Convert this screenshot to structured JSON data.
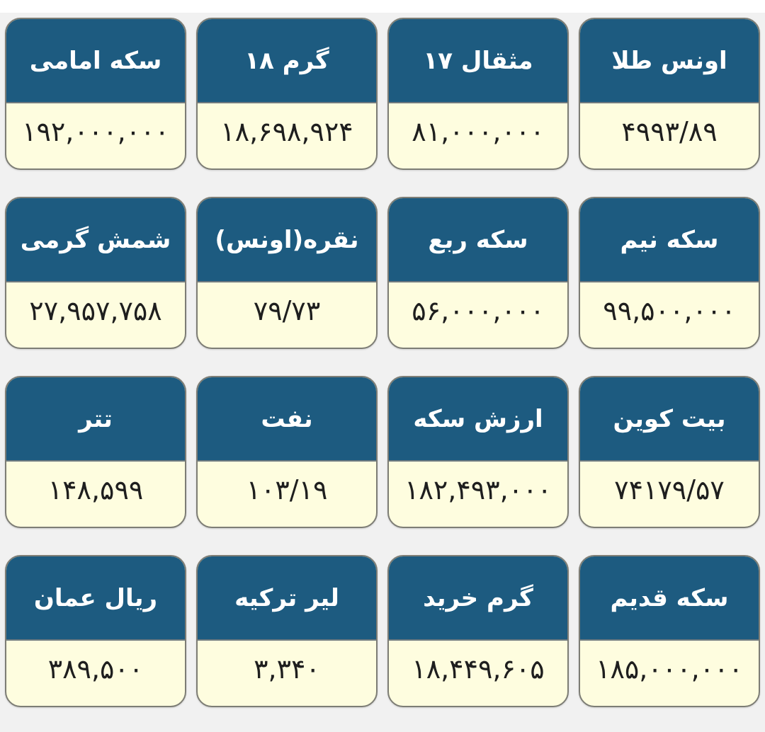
{
  "colors": {
    "header": "#1d5b80",
    "value_bg": "#fefddf",
    "header_text": "#ffffff",
    "value_text": "#1e1e1e"
  },
  "cards": [
    {
      "label": "اونس طلا",
      "value": "۴۹۹۳/۸۹"
    },
    {
      "label": "مثقال ۱۷",
      "value": "۸۱,۰۰۰,۰۰۰"
    },
    {
      "label": "گرم ۱۸",
      "value": "۱۸,۶۹۸,۹۲۴"
    },
    {
      "label": "سکه امامی",
      "value": "۱۹۲,۰۰۰,۰۰۰"
    },
    {
      "label": "سکه نیم",
      "value": "۹۹,۵۰۰,۰۰۰"
    },
    {
      "label": "سکه ربع",
      "value": "۵۶,۰۰۰,۰۰۰"
    },
    {
      "label": "نقره(اونس)",
      "value": "۷۹/۷۳"
    },
    {
      "label": "شمش گرمی",
      "value": "۲۷,۹۵۷,۷۵۸"
    },
    {
      "label": "بیت کوین",
      "value": "۷۴۱۷۹/۵۷"
    },
    {
      "label": "ارزش سکه",
      "value": "۱۸۲,۴۹۳,۰۰۰"
    },
    {
      "label": "نفت",
      "value": "۱۰۳/۱۹"
    },
    {
      "label": "تتر",
      "value": "۱۴۸,۵۹۹"
    },
    {
      "label": "سکه قدیم",
      "value": "۱۸۵,۰۰۰,۰۰۰"
    },
    {
      "label": "گرم خرید",
      "value": "۱۸,۴۴۹,۶۰۵"
    },
    {
      "label": "لیر ترکیه",
      "value": "۳,۳۴۰"
    },
    {
      "label": "ریال عمان",
      "value": "۳۸۹,۵۰۰"
    }
  ]
}
